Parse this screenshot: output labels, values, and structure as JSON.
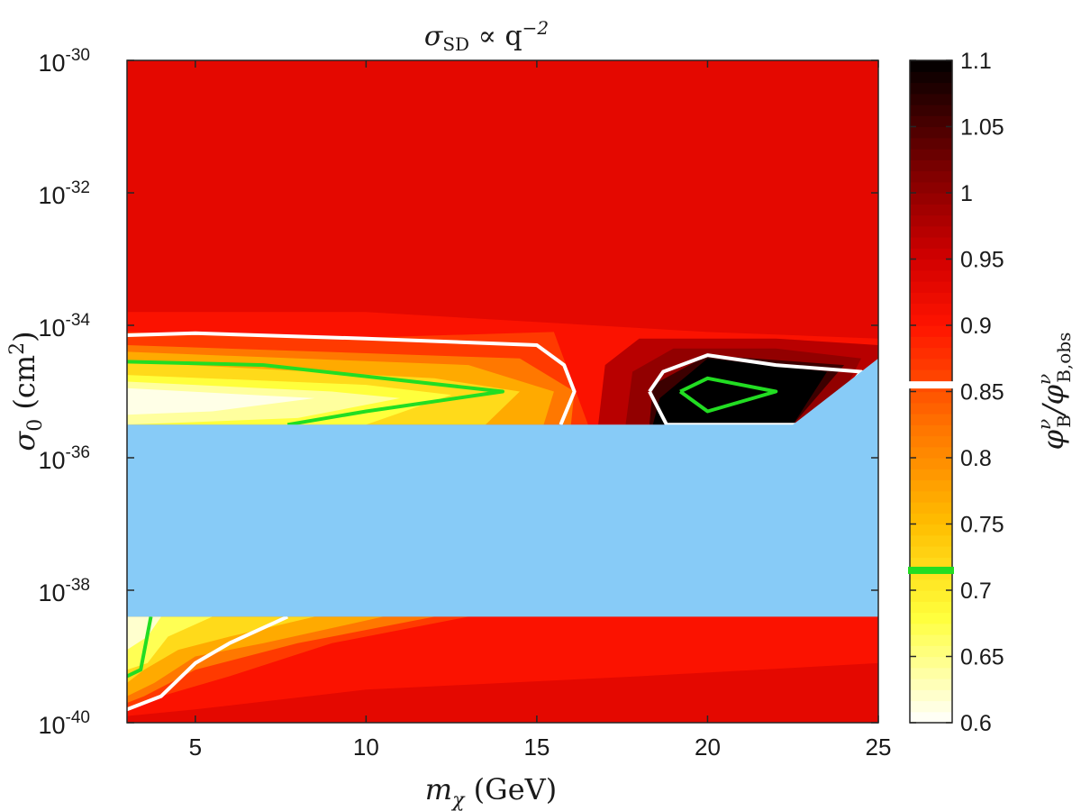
{
  "chart_data": {
    "type": "heatmap",
    "title": "σ",
    "title_sub": "SD",
    "title_rest": " ∝ q",
    "title_sup": "−2",
    "xlabel": "m",
    "xlabel_sub": "χ",
    "xlabel_rest": " (GeV)",
    "ylabel": "σ",
    "ylabel_sub": "0",
    "ylabel_rest": " (cm",
    "ylabel_sup": "2",
    "ylabel_end": ")",
    "colorbar_label": "φ",
    "colorbar_label_sup": "ν",
    "colorbar_label_sub": "B",
    "colorbar_label_slash": "/φ",
    "colorbar_label_sup2": "ν",
    "colorbar_label_sub2": "B,obs",
    "x_range": [
      3,
      25
    ],
    "y_range_log10": [
      -40,
      -30
    ],
    "x_ticks": [
      {
        "value": 5,
        "label": "5"
      },
      {
        "value": 10,
        "label": "10"
      },
      {
        "value": 15,
        "label": "15"
      },
      {
        "value": 20,
        "label": "20"
      },
      {
        "value": 25,
        "label": "25"
      }
    ],
    "y_ticks": [
      {
        "exp": -30,
        "base": "10",
        "sup": "-30"
      },
      {
        "exp": -32,
        "base": "10",
        "sup": "-32"
      },
      {
        "exp": -34,
        "base": "10",
        "sup": "-34"
      },
      {
        "exp": -36,
        "base": "10",
        "sup": "-36"
      },
      {
        "exp": -38,
        "base": "10",
        "sup": "-38"
      },
      {
        "exp": -40,
        "base": "10",
        "sup": "-40"
      }
    ],
    "colorbar_range": [
      0.6,
      1.1
    ],
    "colorbar_ticks": [
      "0.6",
      "0.65",
      "0.7",
      "0.75",
      "0.8",
      "0.85",
      "0.9",
      "0.95",
      "1",
      "1.05",
      "1.1"
    ],
    "colorbar_markers": [
      {
        "value": 0.855,
        "color": "#ffffff"
      },
      {
        "value": 0.715,
        "color": "#22dd22"
      }
    ],
    "excluded_region_color": "#87cbf7",
    "excluded_region": [
      [
        3,
        -35.5
      ],
      [
        22.5,
        -35.5
      ],
      [
        25,
        -34.5
      ],
      [
        25,
        -38.4
      ],
      [
        3,
        -38.4
      ]
    ],
    "background_value": 0.93,
    "bands": [
      {
        "value": 0.905,
        "poly": [
          [
            3,
            -33.8
          ],
          [
            10,
            -33.8
          ],
          [
            20,
            -34.1
          ],
          [
            25,
            -34.2
          ],
          [
            25,
            -35.5
          ],
          [
            3,
            -35.5
          ]
        ]
      },
      {
        "value": 0.87,
        "poly": [
          [
            3,
            -34.1
          ],
          [
            9,
            -34.2
          ],
          [
            15.5,
            -34.1
          ],
          [
            16.5,
            -35.5
          ],
          [
            3,
            -35.5
          ]
        ]
      },
      {
        "value": 0.82,
        "poly": [
          [
            3,
            -34.3
          ],
          [
            14.5,
            -34.5
          ],
          [
            16.1,
            -35
          ],
          [
            16,
            -35.5
          ],
          [
            3,
            -35.5
          ]
        ]
      },
      {
        "value": 0.77,
        "poly": [
          [
            3,
            -34.4
          ],
          [
            13,
            -34.6
          ],
          [
            15.5,
            -35
          ],
          [
            15.2,
            -35.5
          ],
          [
            3,
            -35.5
          ]
        ]
      },
      {
        "value": 0.72,
        "poly": [
          [
            3,
            -34.55
          ],
          [
            12,
            -34.8
          ],
          [
            14.5,
            -35
          ],
          [
            13.5,
            -35.5
          ],
          [
            3,
            -35.5
          ]
        ]
      },
      {
        "value": 0.68,
        "poly": [
          [
            3,
            -34.75
          ],
          [
            10,
            -34.9
          ],
          [
            12.5,
            -35.05
          ],
          [
            10,
            -35.5
          ],
          [
            3,
            -35.5
          ]
        ]
      },
      {
        "value": 0.64,
        "poly": [
          [
            3,
            -34.85
          ],
          [
            9,
            -35
          ],
          [
            11,
            -35.1
          ],
          [
            8,
            -35.4
          ],
          [
            3,
            -35.5
          ]
        ]
      },
      {
        "value": 0.61,
        "poly": [
          [
            3,
            -34.95
          ],
          [
            8.5,
            -35.1
          ],
          [
            5.5,
            -35.3
          ],
          [
            3,
            -35.35
          ]
        ]
      },
      {
        "value": 0.97,
        "poly": [
          [
            16.8,
            -35.5
          ],
          [
            17,
            -34.6
          ],
          [
            18,
            -34.2
          ],
          [
            22,
            -34.2
          ],
          [
            25,
            -34.3
          ],
          [
            25,
            -34.5
          ],
          [
            22.5,
            -35.5
          ]
        ]
      },
      {
        "value": 1.0,
        "poly": [
          [
            17.6,
            -35.5
          ],
          [
            17.8,
            -34.7
          ],
          [
            19,
            -34.35
          ],
          [
            22,
            -34.35
          ],
          [
            24.5,
            -34.5
          ],
          [
            23.5,
            -35.5
          ]
        ]
      },
      {
        "value": 1.06,
        "poly": [
          [
            18.3,
            -35.5
          ],
          [
            18.4,
            -34.9
          ],
          [
            20,
            -34.45
          ],
          [
            24,
            -34.6
          ],
          [
            22.5,
            -35.5
          ]
        ]
      },
      {
        "value": 1.1,
        "poly": [
          [
            18.4,
            -35.5
          ],
          [
            18.6,
            -35.1
          ],
          [
            20,
            -34.5
          ],
          [
            23.5,
            -34.7
          ],
          [
            22.5,
            -35.5
          ]
        ]
      },
      {
        "value": 0.905,
        "poly": [
          [
            3,
            -38.4
          ],
          [
            25,
            -38.4
          ],
          [
            25,
            -39.1
          ],
          [
            18,
            -39.3
          ],
          [
            10,
            -39.5
          ],
          [
            5,
            -39.8
          ],
          [
            3,
            -39.9
          ]
        ]
      },
      {
        "value": 0.87,
        "poly": [
          [
            3,
            -38.4
          ],
          [
            13,
            -38.4
          ],
          [
            9,
            -38.8
          ],
          [
            6,
            -39.3
          ],
          [
            4,
            -39.6
          ],
          [
            3,
            -39.8
          ]
        ]
      },
      {
        "value": 0.82,
        "poly": [
          [
            3,
            -38.4
          ],
          [
            12,
            -38.4
          ],
          [
            8,
            -38.8
          ],
          [
            5,
            -39.2
          ],
          [
            3.5,
            -39.6
          ],
          [
            3,
            -39.7
          ]
        ]
      },
      {
        "value": 0.77,
        "poly": [
          [
            3,
            -38.4
          ],
          [
            10.5,
            -38.4
          ],
          [
            7,
            -38.8
          ],
          [
            5,
            -39
          ],
          [
            3.8,
            -39.4
          ],
          [
            3,
            -39.6
          ]
        ]
      },
      {
        "value": 0.72,
        "poly": [
          [
            3,
            -38.4
          ],
          [
            8.5,
            -38.4
          ],
          [
            6,
            -38.7
          ],
          [
            4.5,
            -38.9
          ],
          [
            3.5,
            -39.2
          ],
          [
            3,
            -39.4
          ]
        ]
      },
      {
        "value": 0.67,
        "poly": [
          [
            3,
            -38.4
          ],
          [
            5.5,
            -38.4
          ],
          [
            4.2,
            -38.7
          ],
          [
            3.6,
            -39.1
          ],
          [
            3,
            -39.2
          ]
        ]
      },
      {
        "value": 0.62,
        "poly": [
          [
            3,
            -38.4
          ],
          [
            4,
            -38.4
          ],
          [
            3.6,
            -38.7
          ],
          [
            3,
            -38.9
          ]
        ]
      }
    ],
    "contours": [
      {
        "name": "white-contour-left-upper",
        "color": "#ffffff",
        "points": [
          [
            3,
            -34.15
          ],
          [
            5,
            -34.12
          ],
          [
            10,
            -34.2
          ],
          [
            15,
            -34.3
          ],
          [
            15.8,
            -34.6
          ],
          [
            16.1,
            -35
          ],
          [
            15.7,
            -35.5
          ]
        ]
      },
      {
        "name": "green-contour-left-upper",
        "color": "#22dd22",
        "points": [
          [
            3,
            -34.55
          ],
          [
            7,
            -34.6
          ],
          [
            14,
            -35
          ],
          [
            10,
            -35.3
          ],
          [
            7.7,
            -35.5
          ]
        ]
      },
      {
        "name": "white-contour-right",
        "color": "#ffffff",
        "points": [
          [
            18.3,
            -35
          ],
          [
            18.7,
            -34.7
          ],
          [
            20,
            -34.45
          ],
          [
            22,
            -34.6
          ],
          [
            24.5,
            -34.7
          ],
          [
            23.2,
            -35.5
          ],
          [
            18.8,
            -35.5
          ],
          [
            18.3,
            -35
          ]
        ]
      },
      {
        "name": "green-contour-right",
        "color": "#22dd22",
        "points": [
          [
            19.2,
            -35
          ],
          [
            20,
            -34.8
          ],
          [
            22,
            -35
          ],
          [
            20,
            -35.3
          ],
          [
            19.2,
            -35
          ]
        ]
      },
      {
        "name": "white-contour-left-lower",
        "color": "#ffffff",
        "points": [
          [
            7.7,
            -38.4
          ],
          [
            6,
            -38.8
          ],
          [
            5,
            -39.1
          ],
          [
            4,
            -39.6
          ],
          [
            3,
            -39.8
          ]
        ]
      },
      {
        "name": "green-contour-left-lower",
        "color": "#22dd22",
        "points": [
          [
            3.7,
            -38.4
          ],
          [
            3.4,
            -39.2
          ],
          [
            3,
            -39.3
          ]
        ]
      }
    ]
  }
}
